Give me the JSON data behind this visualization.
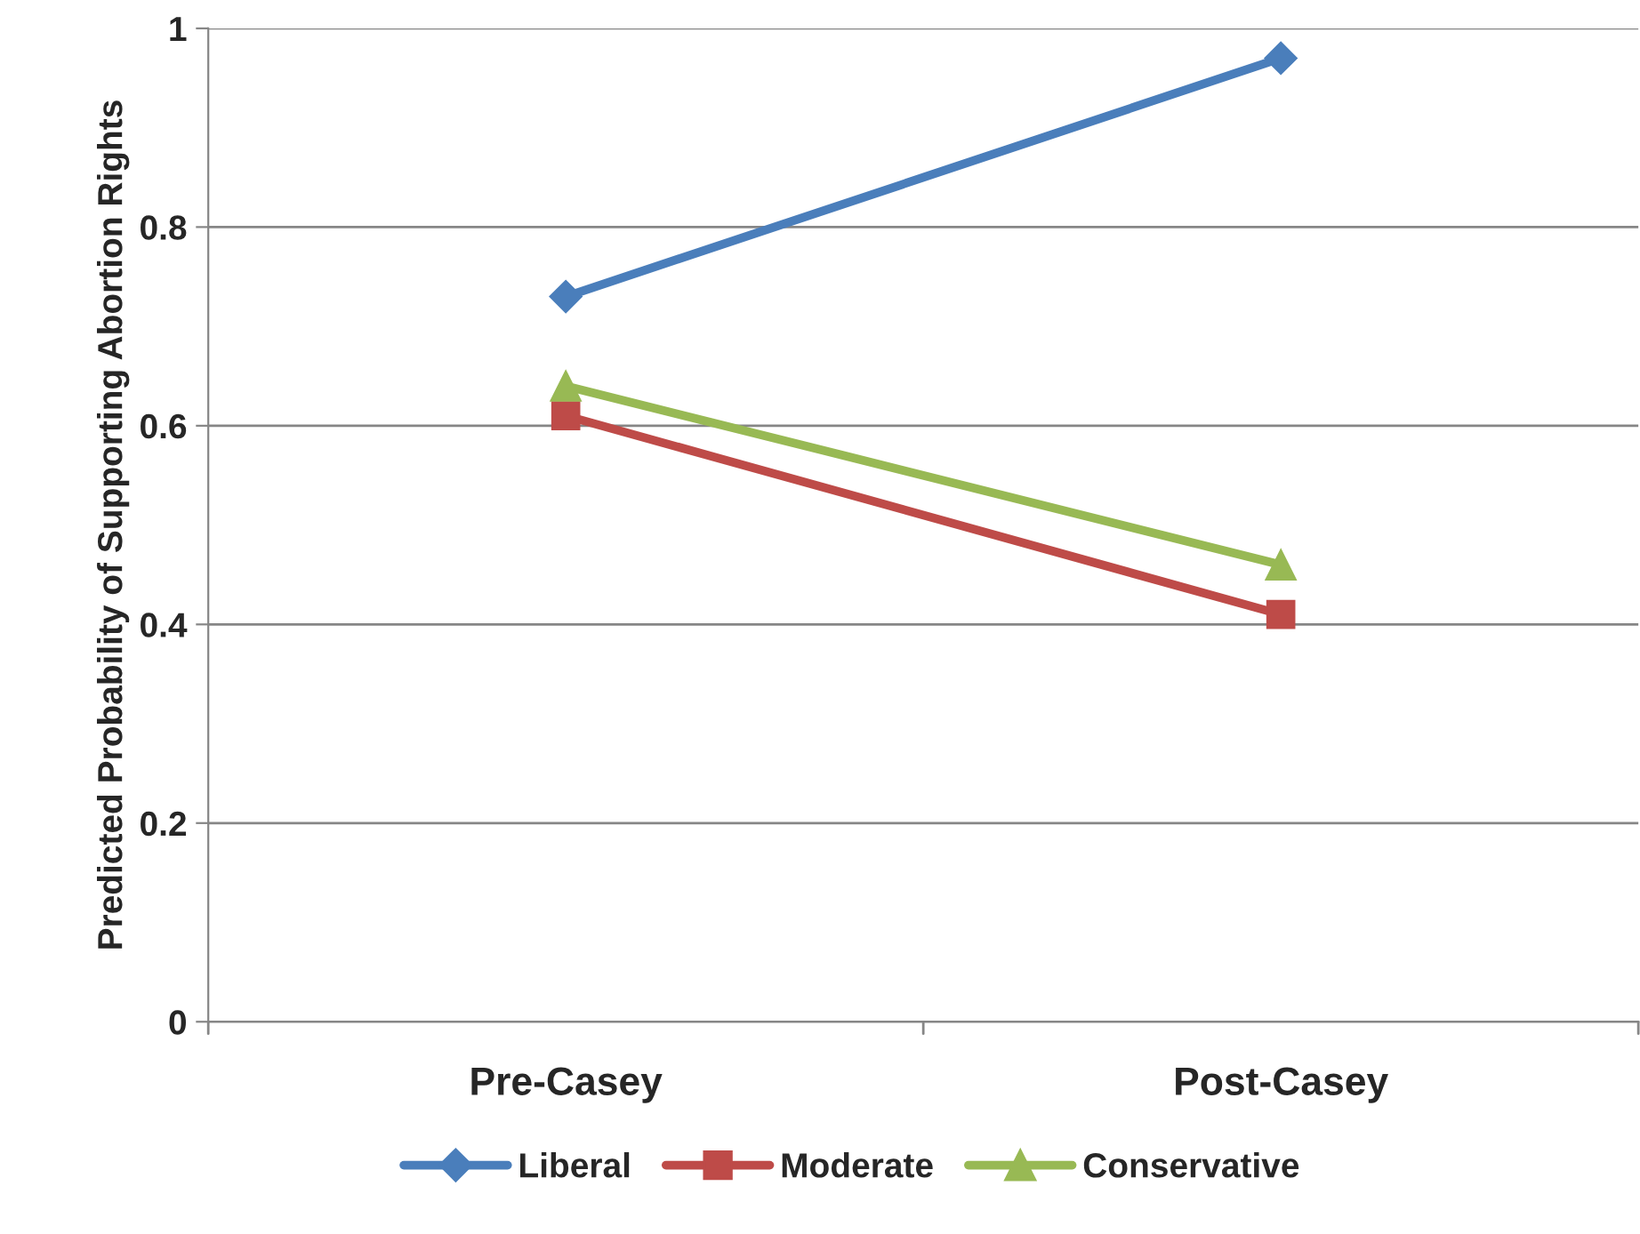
{
  "chart_data": {
    "type": "line",
    "ylabel": "Predicted Probability of Supporting Abortion Rights",
    "categories": [
      "Pre-Casey",
      "Post-Casey"
    ],
    "series": [
      {
        "name": "Liberal",
        "color": "#4a7ebb",
        "marker": "diamond",
        "values": [
          0.73,
          0.97
        ]
      },
      {
        "name": "Moderate",
        "color": "#be4b48",
        "marker": "square",
        "values": [
          0.61,
          0.41
        ]
      },
      {
        "name": "Conservative",
        "color": "#98b954",
        "marker": "triangle",
        "values": [
          0.64,
          0.46
        ]
      }
    ],
    "ylim": [
      0,
      1
    ],
    "yticks": [
      0,
      0.2,
      0.4,
      0.6,
      0.8,
      1
    ],
    "grid": "y",
    "legend": "bottom",
    "line_style": "solid"
  }
}
